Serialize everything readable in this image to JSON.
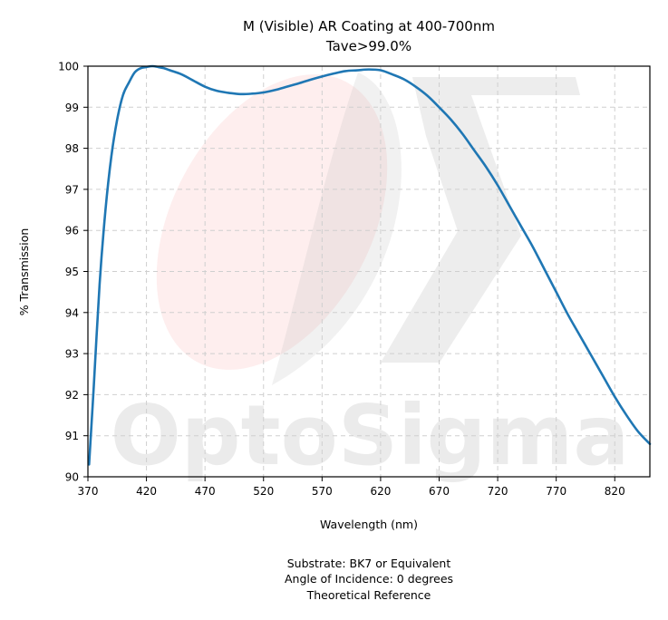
{
  "chart_data": {
    "type": "line",
    "title": [
      "M (Visible) AR Coating at 400-700nm",
      "Tave>99.0%"
    ],
    "xlabel": "Wavelength (nm)",
    "ylabel": "% Transmission",
    "xlim": [
      370,
      850
    ],
    "ylim": [
      90,
      100
    ],
    "xticks": [
      370,
      420,
      470,
      520,
      570,
      620,
      670,
      720,
      770,
      820
    ],
    "yticks": [
      90,
      91,
      92,
      93,
      94,
      95,
      96,
      97,
      98,
      99,
      100
    ],
    "grid": true,
    "series": [
      {
        "color": "#1f77b4",
        "x": [
          371,
          375,
          380,
          385,
          390,
          395,
          400,
          405,
          410,
          415,
          420,
          425,
          430,
          435,
          440,
          450,
          460,
          470,
          480,
          490,
          500,
          510,
          520,
          530,
          540,
          550,
          560,
          570,
          580,
          590,
          600,
          610,
          620,
          630,
          640,
          650,
          660,
          670,
          680,
          690,
          700,
          710,
          720,
          730,
          740,
          750,
          760,
          770,
          780,
          790,
          800,
          810,
          820,
          830,
          840,
          850
        ],
        "y": [
          90.3,
          92.2,
          94.7,
          96.5,
          97.8,
          98.7,
          99.3,
          99.6,
          99.85,
          99.95,
          99.98,
          100.0,
          99.98,
          99.95,
          99.9,
          99.8,
          99.65,
          99.5,
          99.4,
          99.35,
          99.32,
          99.33,
          99.36,
          99.42,
          99.5,
          99.58,
          99.67,
          99.75,
          99.82,
          99.88,
          99.9,
          99.92,
          99.9,
          99.8,
          99.68,
          99.5,
          99.28,
          99.0,
          98.7,
          98.35,
          97.95,
          97.55,
          97.1,
          96.6,
          96.1,
          95.6,
          95.05,
          94.5,
          93.95,
          93.45,
          92.95,
          92.45,
          91.95,
          91.5,
          91.1,
          90.8
        ]
      }
    ],
    "annotations": [
      "Substrate: BK7 or Equivalent",
      "Angle of Incidence: 0 degrees",
      "Theoretical Reference"
    ]
  },
  "watermark": {
    "text": "OptoSigma",
    "ellipse_color": "#fde3e3",
    "sigma_color": "#bdbdbd"
  }
}
